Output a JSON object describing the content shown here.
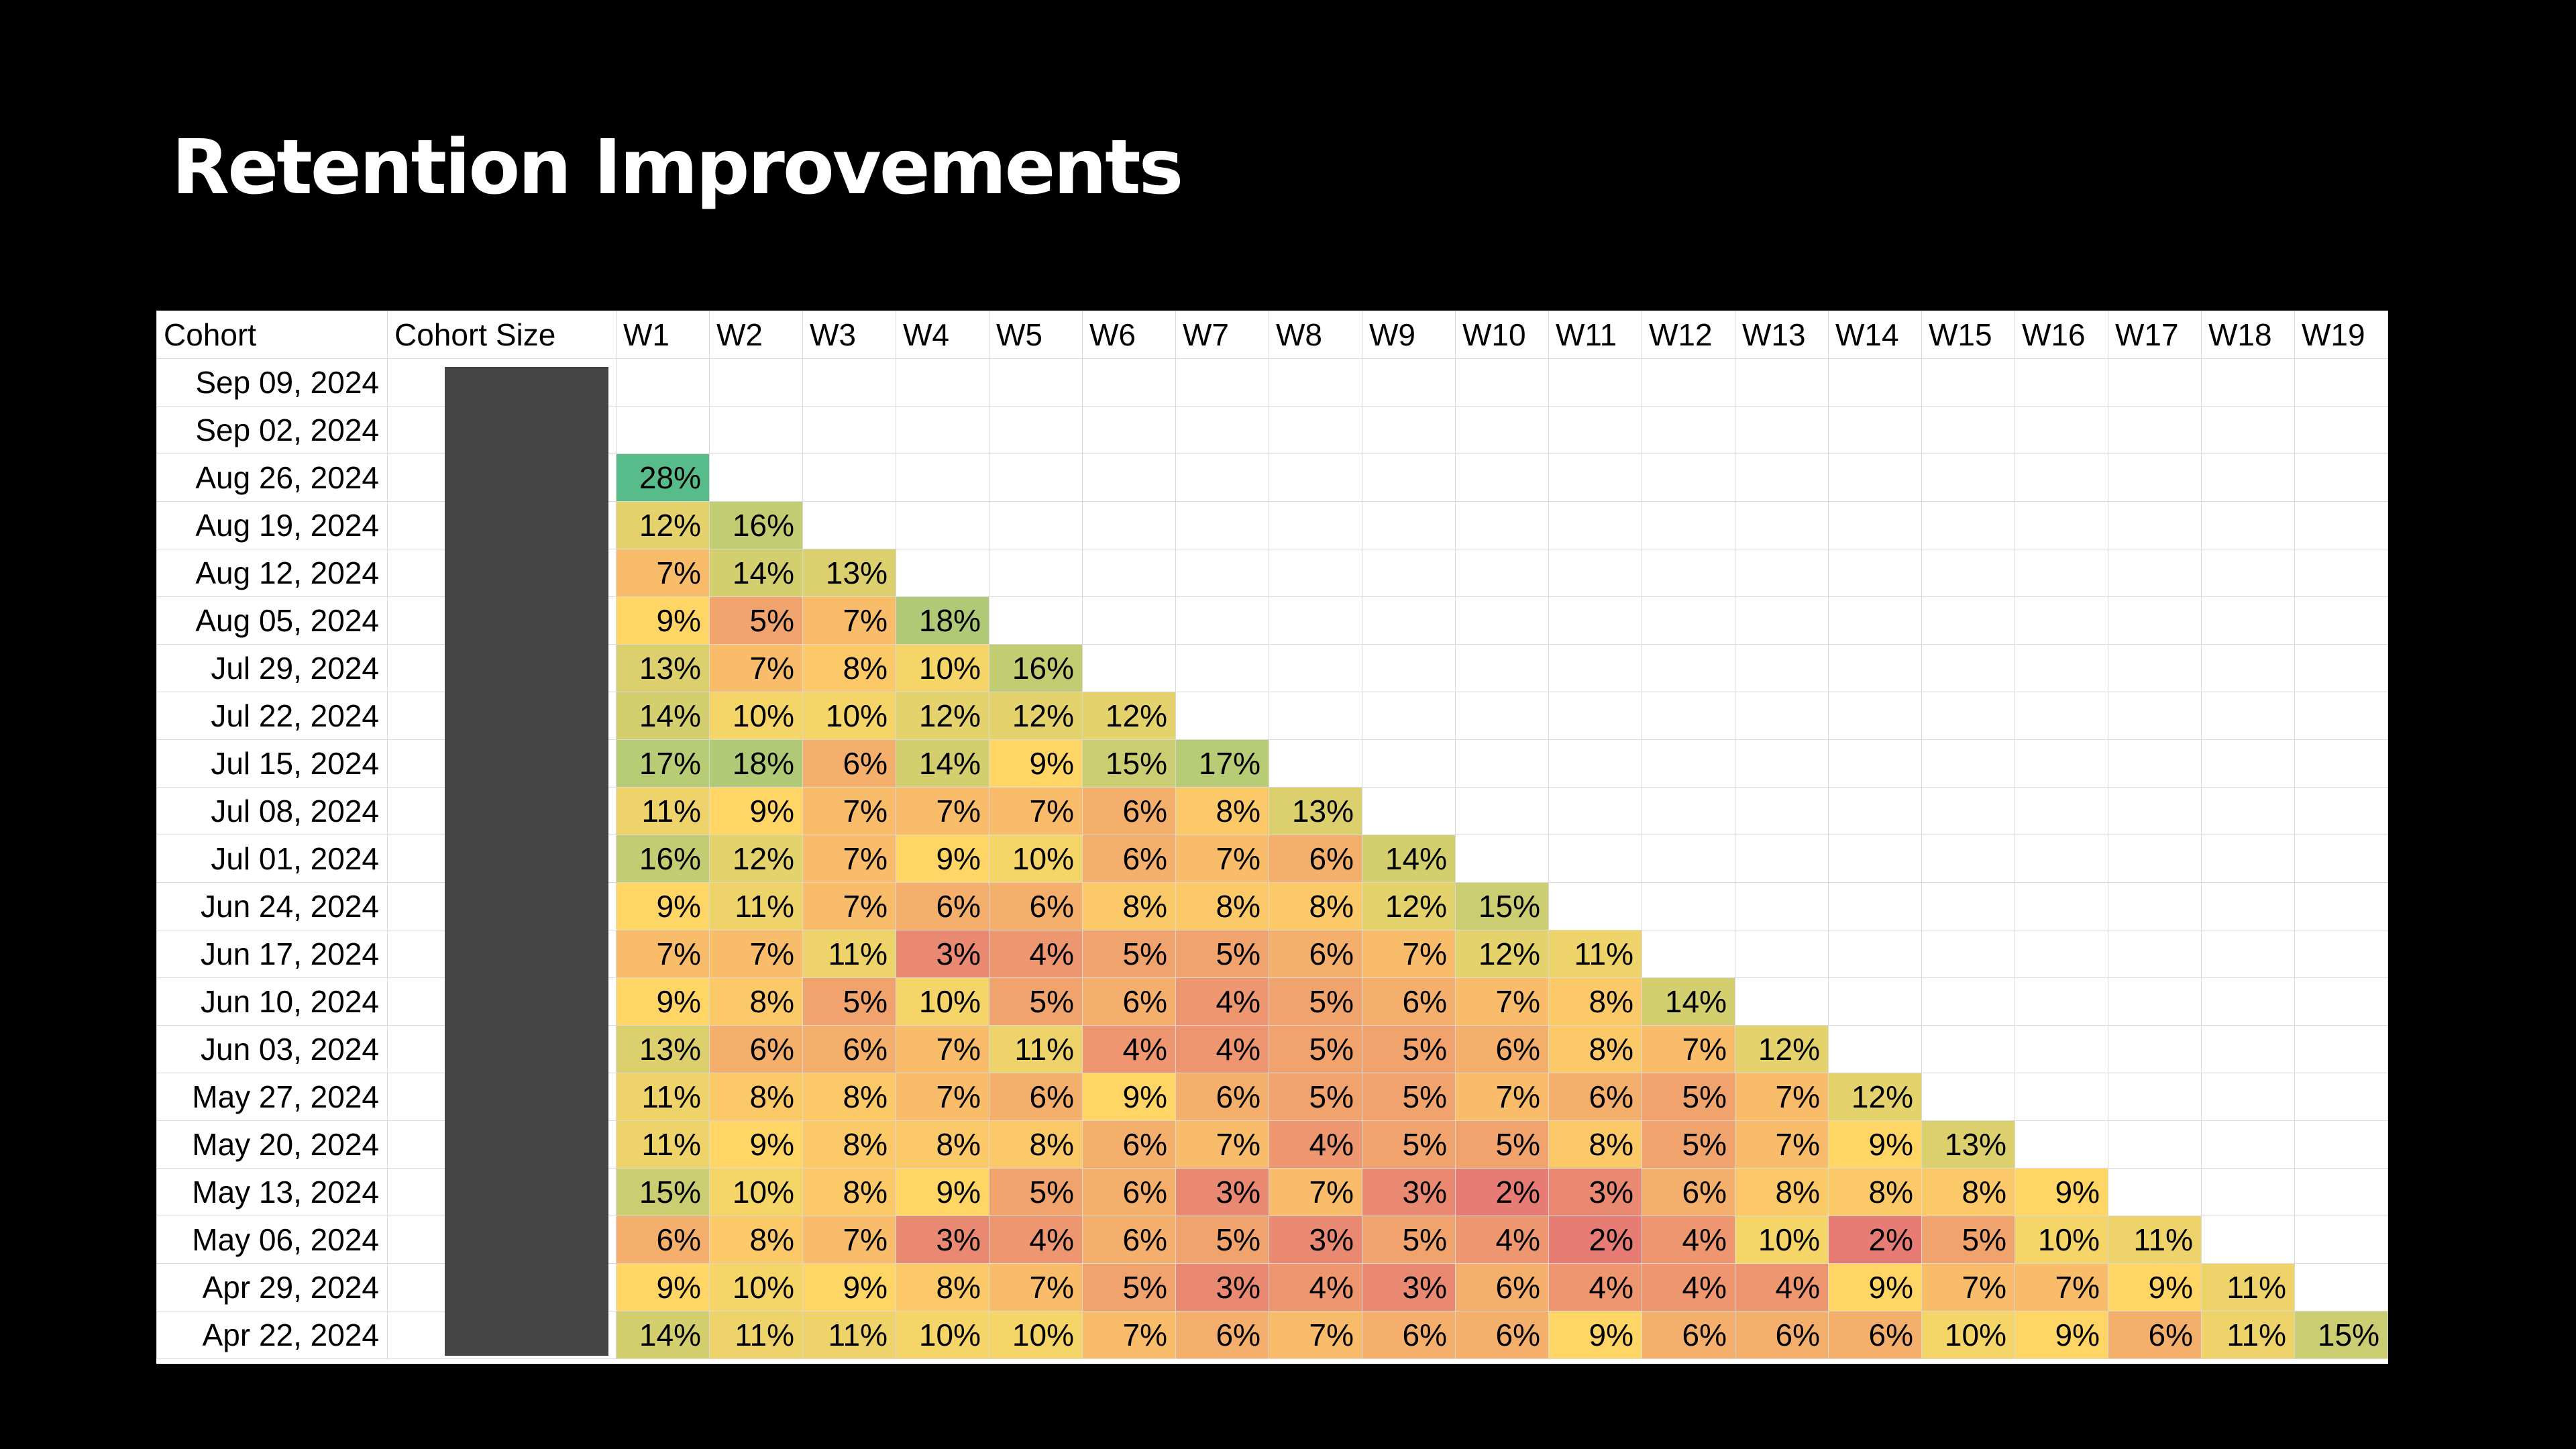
{
  "title": "Retention Improvements",
  "chart_data": {
    "type": "table",
    "title": "Retention Improvements",
    "columns": [
      "Cohort",
      "Cohort Size",
      "W1",
      "W2",
      "W3",
      "W4",
      "W5",
      "W6",
      "W7",
      "W8",
      "W9",
      "W10",
      "W11",
      "W12",
      "W13",
      "W14",
      "W15",
      "W16",
      "W17",
      "W18",
      "W19"
    ],
    "cohort_size_redacted": true,
    "unit": "%",
    "rows": [
      {
        "cohort": "Sep 09, 2024",
        "values": []
      },
      {
        "cohort": "Sep 02, 2024",
        "values": []
      },
      {
        "cohort": "Aug 26, 2024",
        "values": [
          28
        ]
      },
      {
        "cohort": "Aug 19, 2024",
        "values": [
          12,
          16
        ]
      },
      {
        "cohort": "Aug 12, 2024",
        "values": [
          7,
          14,
          13
        ]
      },
      {
        "cohort": "Aug 05, 2024",
        "values": [
          9,
          5,
          7,
          18
        ]
      },
      {
        "cohort": "Jul 29, 2024",
        "values": [
          13,
          7,
          8,
          10,
          16
        ]
      },
      {
        "cohort": "Jul 22, 2024",
        "values": [
          14,
          10,
          10,
          12,
          12,
          12
        ]
      },
      {
        "cohort": "Jul 15, 2024",
        "values": [
          17,
          18,
          6,
          14,
          9,
          15,
          17
        ]
      },
      {
        "cohort": "Jul 08, 2024",
        "values": [
          11,
          9,
          7,
          7,
          7,
          6,
          8,
          13
        ]
      },
      {
        "cohort": "Jul 01, 2024",
        "values": [
          16,
          12,
          7,
          9,
          10,
          6,
          7,
          6,
          14
        ]
      },
      {
        "cohort": "Jun 24, 2024",
        "values": [
          9,
          11,
          7,
          6,
          6,
          8,
          8,
          8,
          12,
          15
        ]
      },
      {
        "cohort": "Jun 17, 2024",
        "values": [
          7,
          7,
          11,
          3,
          4,
          5,
          5,
          6,
          7,
          12,
          11
        ]
      },
      {
        "cohort": "Jun 10, 2024",
        "values": [
          9,
          8,
          5,
          10,
          5,
          6,
          4,
          5,
          6,
          7,
          8,
          14
        ]
      },
      {
        "cohort": "Jun 03, 2024",
        "values": [
          13,
          6,
          6,
          7,
          11,
          4,
          4,
          5,
          5,
          6,
          8,
          7,
          12
        ]
      },
      {
        "cohort": "May 27, 2024",
        "values": [
          11,
          8,
          8,
          7,
          6,
          9,
          6,
          5,
          5,
          7,
          6,
          5,
          7,
          12
        ]
      },
      {
        "cohort": "May 20, 2024",
        "values": [
          11,
          9,
          8,
          8,
          8,
          6,
          7,
          4,
          5,
          5,
          8,
          5,
          7,
          9,
          13
        ]
      },
      {
        "cohort": "May 13, 2024",
        "values": [
          15,
          10,
          8,
          9,
          5,
          6,
          3,
          7,
          3,
          2,
          3,
          6,
          8,
          8,
          8,
          9
        ]
      },
      {
        "cohort": "May 06, 2024",
        "values": [
          6,
          8,
          7,
          3,
          4,
          6,
          5,
          3,
          5,
          4,
          2,
          4,
          10,
          2,
          5,
          10,
          11
        ]
      },
      {
        "cohort": "Apr 29, 2024",
        "values": [
          9,
          10,
          9,
          8,
          7,
          5,
          3,
          4,
          3,
          6,
          4,
          4,
          4,
          9,
          7,
          7,
          9,
          11
        ]
      },
      {
        "cohort": "Apr 22, 2024",
        "values": [
          14,
          11,
          11,
          10,
          10,
          7,
          6,
          7,
          6,
          6,
          9,
          6,
          6,
          6,
          10,
          9,
          6,
          11,
          15
        ]
      }
    ],
    "color_scale": {
      "low": "#e67c73",
      "mid": "#ffd666",
      "high": "#57bb8a",
      "min": 2,
      "mid_value": 9,
      "max": 28
    }
  }
}
